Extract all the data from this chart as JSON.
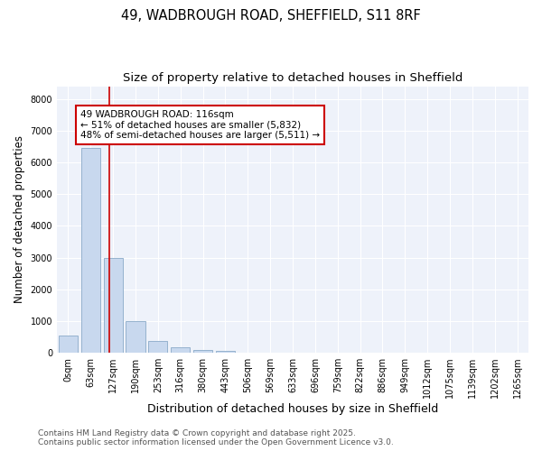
{
  "title_line1": "49, WADBROUGH ROAD, SHEFFIELD, S11 8RF",
  "title_line2": "Size of property relative to detached houses in Sheffield",
  "xlabel": "Distribution of detached houses by size in Sheffield",
  "ylabel": "Number of detached properties",
  "bar_color": "#c8d8ee",
  "bar_edge_color": "#8aaac8",
  "vline_color": "#cc0000",
  "annotation_text": "49 WADBROUGH ROAD: 116sqm\n← 51% of detached houses are smaller (5,832)\n48% of semi-detached houses are larger (5,511) →",
  "annotation_box_color": "#ffffff",
  "annotation_box_edge": "#cc0000",
  "bins": [
    "0sqm",
    "63sqm",
    "127sqm",
    "190sqm",
    "253sqm",
    "316sqm",
    "380sqm",
    "443sqm",
    "506sqm",
    "569sqm",
    "633sqm",
    "696sqm",
    "759sqm",
    "822sqm",
    "886sqm",
    "949sqm",
    "1012sqm",
    "1075sqm",
    "1139sqm",
    "1202sqm",
    "1265sqm"
  ],
  "values": [
    550,
    6450,
    3000,
    1000,
    380,
    160,
    80,
    50,
    0,
    0,
    0,
    0,
    0,
    0,
    0,
    0,
    0,
    0,
    0,
    0,
    0
  ],
  "ylim": [
    0,
    8400
  ],
  "yticks": [
    0,
    1000,
    2000,
    3000,
    4000,
    5000,
    6000,
    7000,
    8000
  ],
  "background_color": "#ffffff",
  "plot_background": "#eef2fa",
  "footer_line1": "Contains HM Land Registry data © Crown copyright and database right 2025.",
  "footer_line2": "Contains public sector information licensed under the Open Government Licence v3.0.",
  "title_fontsize": 10.5,
  "subtitle_fontsize": 9.5,
  "tick_fontsize": 7,
  "ylabel_fontsize": 8.5,
  "xlabel_fontsize": 9,
  "footer_fontsize": 6.5
}
